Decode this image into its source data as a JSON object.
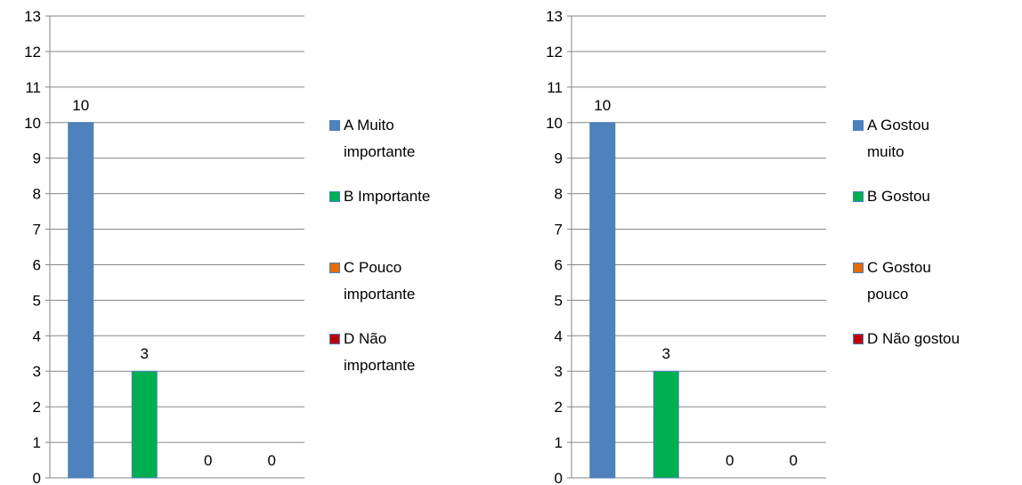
{
  "chart_data": [
    {
      "type": "bar",
      "categories": [
        "A  Muito importante",
        "B  Importante",
        "C  Pouco importante",
        "D  Não importante"
      ],
      "values": [
        10,
        3,
        0,
        0
      ],
      "ylim": [
        0,
        13
      ],
      "yticks": [
        "0",
        "1",
        "2",
        "3",
        "4",
        "5",
        "6",
        "7",
        "8",
        "9",
        "10",
        "11",
        "12",
        "13"
      ],
      "grid": true,
      "legend_position": "right",
      "legend": [
        "A  Muito\nimportante",
        "B  Importante",
        "C  Pouco\nimportante",
        "D  Não\nimportante"
      ],
      "colors": [
        "#4f81bd",
        "#00b050",
        "#e46c0a",
        "#c00000"
      ],
      "data_labels": [
        "10",
        "3",
        "0",
        "0"
      ]
    },
    {
      "type": "bar",
      "categories": [
        "A  Gostou muito",
        "B  Gostou",
        "C  Gostou pouco",
        "D  Não gostou"
      ],
      "values": [
        10,
        3,
        0,
        0
      ],
      "ylim": [
        0,
        13
      ],
      "yticks": [
        "0",
        "1",
        "2",
        "3",
        "4",
        "5",
        "6",
        "7",
        "8",
        "9",
        "10",
        "11",
        "12",
        "13"
      ],
      "grid": true,
      "legend_position": "right",
      "legend": [
        "A  Gostou\nmuito",
        "B  Gostou",
        "C  Gostou\npouco",
        "D  Não gostou"
      ],
      "colors": [
        "#4f81bd",
        "#00b050",
        "#e46c0a",
        "#c00000"
      ],
      "data_labels": [
        "10",
        "3",
        "0",
        "0"
      ]
    }
  ]
}
